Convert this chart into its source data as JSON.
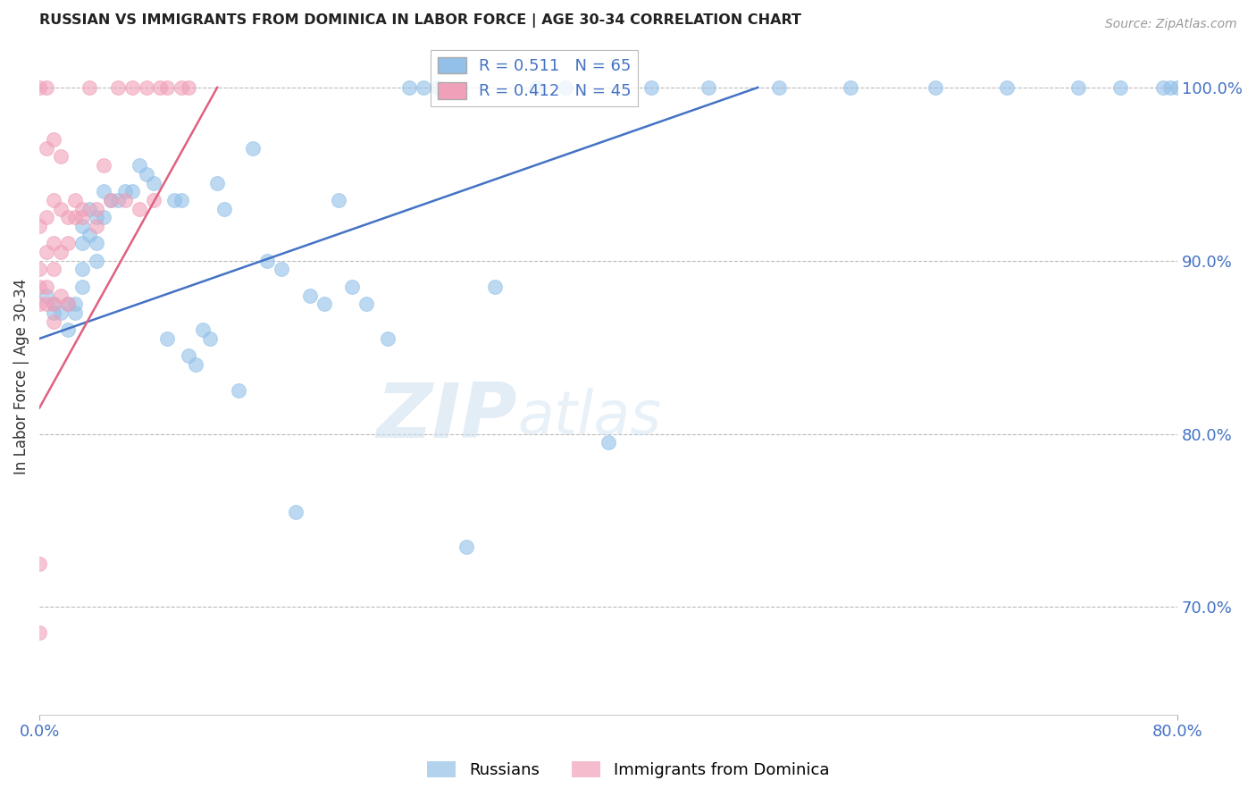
{
  "title": "RUSSIAN VS IMMIGRANTS FROM DOMINICA IN LABOR FORCE | AGE 30-34 CORRELATION CHART",
  "source": "Source: ZipAtlas.com",
  "ylabel": "In Labor Force | Age 30-34",
  "right_yticks": [
    1.0,
    0.9,
    0.8,
    0.7
  ],
  "right_yticklabels": [
    "100.0%",
    "90.0%",
    "80.0%",
    "70.0%"
  ],
  "xmin": 0.0,
  "xmax": 0.8,
  "ymin": 0.638,
  "ymax": 1.028,
  "blue_R": 0.511,
  "blue_N": 65,
  "pink_R": 0.412,
  "pink_N": 45,
  "blue_color": "#92c0e8",
  "pink_color": "#f0a0b8",
  "blue_line_color": "#4472c4",
  "pink_line_color": "#e06080",
  "title_color": "#222222",
  "axis_color": "#4472c4",
  "legend_label_blue": "Russians",
  "legend_label_pink": "Immigrants from Dominica",
  "blue_x": [
    0.005,
    0.01,
    0.01,
    0.015,
    0.02,
    0.02,
    0.025,
    0.025,
    0.03,
    0.03,
    0.03,
    0.03,
    0.035,
    0.035,
    0.04,
    0.04,
    0.04,
    0.045,
    0.045,
    0.05,
    0.055,
    0.06,
    0.065,
    0.07,
    0.075,
    0.08,
    0.09,
    0.095,
    0.1,
    0.105,
    0.11,
    0.115,
    0.12,
    0.125,
    0.13,
    0.14,
    0.15,
    0.16,
    0.17,
    0.18,
    0.19,
    0.2,
    0.21,
    0.22,
    0.23,
    0.245,
    0.26,
    0.27,
    0.28,
    0.3,
    0.32,
    0.35,
    0.37,
    0.4,
    0.43,
    0.47,
    0.52,
    0.57,
    0.63,
    0.68,
    0.73,
    0.76,
    0.79,
    0.795,
    0.8
  ],
  "blue_y": [
    0.88,
    0.875,
    0.87,
    0.87,
    0.875,
    0.86,
    0.875,
    0.87,
    0.92,
    0.91,
    0.895,
    0.885,
    0.93,
    0.915,
    0.925,
    0.91,
    0.9,
    0.94,
    0.925,
    0.935,
    0.935,
    0.94,
    0.94,
    0.955,
    0.95,
    0.945,
    0.855,
    0.935,
    0.935,
    0.845,
    0.84,
    0.86,
    0.855,
    0.945,
    0.93,
    0.825,
    0.965,
    0.9,
    0.895,
    0.755,
    0.88,
    0.875,
    0.935,
    0.885,
    0.875,
    0.855,
    1.0,
    1.0,
    1.0,
    0.735,
    0.885,
    1.0,
    1.0,
    0.795,
    1.0,
    1.0,
    1.0,
    1.0,
    1.0,
    1.0,
    1.0,
    1.0,
    1.0,
    1.0,
    1.0
  ],
  "pink_x": [
    0.0,
    0.0,
    0.0,
    0.0,
    0.0,
    0.0,
    0.0,
    0.005,
    0.005,
    0.005,
    0.005,
    0.005,
    0.005,
    0.01,
    0.01,
    0.01,
    0.01,
    0.01,
    0.01,
    0.015,
    0.015,
    0.015,
    0.015,
    0.02,
    0.02,
    0.02,
    0.025,
    0.025,
    0.03,
    0.03,
    0.035,
    0.04,
    0.04,
    0.045,
    0.05,
    0.055,
    0.06,
    0.065,
    0.07,
    0.075,
    0.08,
    0.085,
    0.09,
    0.1,
    0.105
  ],
  "pink_y": [
    1.0,
    0.92,
    0.895,
    0.885,
    0.875,
    0.725,
    0.685,
    1.0,
    0.965,
    0.925,
    0.905,
    0.885,
    0.875,
    0.97,
    0.935,
    0.91,
    0.895,
    0.875,
    0.865,
    0.96,
    0.93,
    0.905,
    0.88,
    0.925,
    0.91,
    0.875,
    0.935,
    0.925,
    0.93,
    0.925,
    1.0,
    0.93,
    0.92,
    0.955,
    0.935,
    1.0,
    0.935,
    1.0,
    0.93,
    1.0,
    0.935,
    1.0,
    1.0,
    1.0,
    1.0
  ],
  "blue_trendline_x": [
    0.0,
    0.505
  ],
  "blue_trendline_y": [
    0.855,
    1.0
  ],
  "pink_trendline_x": [
    0.0,
    0.125
  ],
  "pink_trendline_y": [
    0.815,
    1.0
  ]
}
